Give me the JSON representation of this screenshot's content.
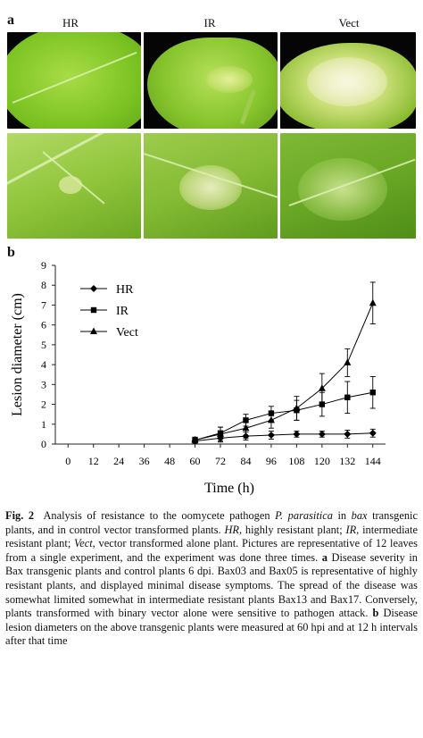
{
  "figure": {
    "panel_a_label": "a",
    "panel_b_label": "b",
    "photo_columns": [
      "HR",
      "IR",
      "Vect"
    ]
  },
  "chart_data": {
    "type": "line",
    "ylabel": "Lesion diameter (cm)",
    "xlabel": "Time (h)",
    "x_ticks": [
      0,
      12,
      24,
      36,
      48,
      60,
      72,
      84,
      96,
      108,
      120,
      132,
      144
    ],
    "y_ticks": [
      0,
      1,
      2,
      3,
      4,
      5,
      6,
      7,
      8,
      9
    ],
    "ylim": [
      0,
      9
    ],
    "xlim": [
      -6,
      150
    ],
    "legend_position": "top-left",
    "series": [
      {
        "name": "HR",
        "marker": "diamond",
        "x": [
          60,
          72,
          84,
          96,
          108,
          120,
          132,
          144
        ],
        "y": [
          0.15,
          0.3,
          0.4,
          0.45,
          0.5,
          0.5,
          0.5,
          0.55
        ],
        "err": [
          0.1,
          0.2,
          0.2,
          0.2,
          0.15,
          0.15,
          0.2,
          0.2
        ]
      },
      {
        "name": "IR",
        "marker": "square",
        "x": [
          60,
          72,
          84,
          96,
          108,
          120,
          132,
          144
        ],
        "y": [
          0.2,
          0.55,
          1.2,
          1.55,
          1.7,
          2.0,
          2.35,
          2.6
        ],
        "err": [
          0.15,
          0.3,
          0.3,
          0.35,
          0.5,
          0.6,
          0.8,
          0.8
        ]
      },
      {
        "name": "Vect",
        "marker": "triangle",
        "x": [
          60,
          72,
          84,
          96,
          108,
          120,
          132,
          144
        ],
        "y": [
          0.2,
          0.5,
          0.8,
          1.2,
          1.8,
          2.8,
          4.1,
          7.1
        ],
        "err": [
          0.1,
          0.35,
          0.5,
          0.4,
          0.6,
          0.75,
          0.7,
          1.05
        ]
      }
    ]
  },
  "caption": {
    "fig_label": "Fig. 2",
    "text_1": "Analysis of resistance to the oomycete pathogen ",
    "pathogen": "P. parasitica",
    "text_2": " in ",
    "gene": "bax",
    "text_3": " transgenic plants, and in control vector transformed plants. ",
    "hr_abbr": "HR",
    "text_4": ", highly resistant plant; ",
    "ir_abbr": "IR",
    "text_5": ", intermediate resistant plant; ",
    "vect_abbr": "Vect",
    "text_6": ", vector transformed alone plant. Pictures are representative of 12 leaves from a single experiment, and the experiment was done three times. ",
    "a_label": "a",
    "text_7": " Disease severity in Bax transgenic plants and control plants 6 dpi. Bax03 and Bax05 is representative of highly resistant plants, and displayed minimal disease symptoms. The spread of the disease was somewhat limited somewhat in intermediate resistant plants Bax13 and Bax17. Conversely, plants transformed with binary vector alone were sensitive to pathogen attack. ",
    "b_label": "b",
    "text_8": " Disease lesion diameters on the above transgenic plants were measured at 60 hpi and at 12 h intervals after that time"
  }
}
